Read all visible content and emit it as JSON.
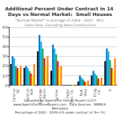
{
  "chart_data": {
    "type": "bar",
    "title": "Additional Percent Under Contract in 14 Days vs Normal Market:  Small Houses",
    "subtitle": "\"Normal Market\" is Average of 2004 - 2007.  MLS Sales Only, Excluding New Construction",
    "annotations": [
      "Compiled by Agents For Homes Buyers LLC   www.AgentsForHomeBuyers.com   Data Sources:  NWMLS Metrodata\nPercantage of 2002 - 2009 still under contract at 5+ (%)"
    ],
    "categories": [
      "Central\nSE",
      "Central\nNW",
      "Eastside\nNorth",
      "Lynnw.",
      "Outer\nSno. Co.",
      "Fed.\nWay",
      "S. King\nCo.",
      "E"
    ],
    "series": [
      {
        "color": "#000000",
        "values": [
          22,
          18,
          35,
          15,
          0,
          4,
          10,
          25
        ]
      },
      {
        "color": "#0070c0",
        "values": [
          30,
          20,
          52,
          42,
          0,
          10,
          15,
          38
        ]
      },
      {
        "color": "#00b0f0",
        "values": [
          28,
          18,
          45,
          38,
          0,
          8,
          12,
          35
        ]
      },
      {
        "color": "#00b050",
        "values": [
          20,
          15,
          38,
          32,
          0,
          6,
          10,
          26
        ]
      },
      {
        "color": "#ff0000",
        "values": [
          18,
          12,
          28,
          25,
          0,
          4,
          7,
          18
        ]
      },
      {
        "color": "#ffff00",
        "values": [
          15,
          10,
          20,
          18,
          1,
          2,
          4,
          15
        ]
      },
      {
        "color": "#ff8000",
        "values": [
          20,
          22,
          30,
          20,
          0,
          5,
          8,
          28
        ]
      }
    ],
    "ylim": [
      -2,
      60
    ],
    "yticks": [
      0,
      10,
      20,
      30,
      40,
      50,
      60
    ],
    "grid": true
  }
}
